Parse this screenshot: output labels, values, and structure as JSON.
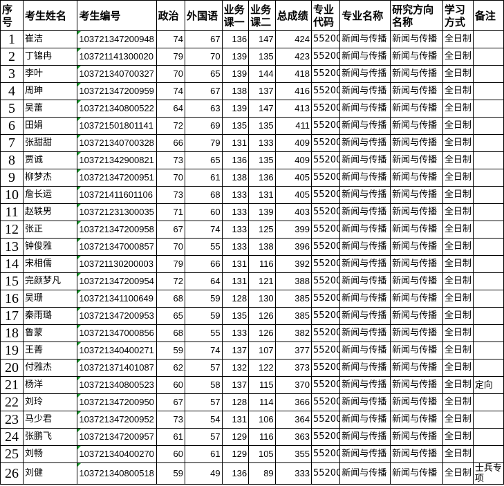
{
  "headers": [
    "序号",
    "考生姓名",
    "考生编号",
    "政治",
    "外国语",
    "业务课一",
    "业务课二",
    "总成绩",
    "专业代码",
    "专业名称",
    "研究方向名称",
    "学习方式",
    "备注"
  ],
  "rows": [
    [
      "1",
      "崔洁",
      "103721347200948",
      "74",
      "67",
      "136",
      "147",
      "424",
      "55200",
      "新闻与传播",
      "新闻与传播",
      "全日制",
      ""
    ],
    [
      "2",
      "丁锦冉",
      "103721141300020",
      "79",
      "70",
      "139",
      "135",
      "423",
      "55200",
      "新闻与传播",
      "新闻与传播",
      "全日制",
      ""
    ],
    [
      "3",
      "李叶",
      "103721340700327",
      "70",
      "65",
      "139",
      "144",
      "418",
      "55200",
      "新闻与传播",
      "新闻与传播",
      "全日制",
      ""
    ],
    [
      "4",
      "周珅",
      "103721347200959",
      "74",
      "67",
      "138",
      "137",
      "416",
      "55200",
      "新闻与传播",
      "新闻与传播",
      "全日制",
      ""
    ],
    [
      "5",
      "吴蕾",
      "103721340800522",
      "64",
      "63",
      "139",
      "147",
      "413",
      "55200",
      "新闻与传播",
      "新闻与传播",
      "全日制",
      ""
    ],
    [
      "6",
      "田娟",
      "103721501801141",
      "72",
      "69",
      "135",
      "135",
      "411",
      "55200",
      "新闻与传播",
      "新闻与传播",
      "全日制",
      ""
    ],
    [
      "7",
      "张甜甜",
      "103721340700328",
      "66",
      "79",
      "131",
      "133",
      "409",
      "55200",
      "新闻与传播",
      "新闻与传播",
      "全日制",
      ""
    ],
    [
      "8",
      "贾诚",
      "103721342900821",
      "73",
      "65",
      "136",
      "135",
      "409",
      "55200",
      "新闻与传播",
      "新闻与传播",
      "全日制",
      ""
    ],
    [
      "9",
      "柳梦杰",
      "103721347200951",
      "70",
      "61",
      "138",
      "136",
      "405",
      "55200",
      "新闻与传播",
      "新闻与传播",
      "全日制",
      ""
    ],
    [
      "10",
      "詹长运",
      "103721411601106",
      "73",
      "68",
      "133",
      "131",
      "405",
      "55200",
      "新闻与传播",
      "新闻与传播",
      "全日制",
      ""
    ],
    [
      "11",
      "赵轶男",
      "103721231300035",
      "71",
      "60",
      "133",
      "139",
      "403",
      "55200",
      "新闻与传播",
      "新闻与传播",
      "全日制",
      ""
    ],
    [
      "12",
      "张正",
      "103721347200958",
      "67",
      "74",
      "133",
      "125",
      "399",
      "55200",
      "新闻与传播",
      "新闻与传播",
      "全日制",
      ""
    ],
    [
      "13",
      "钟俊雅",
      "103721347000857",
      "70",
      "55",
      "133",
      "138",
      "396",
      "55200",
      "新闻与传播",
      "新闻与传播",
      "全日制",
      ""
    ],
    [
      "14",
      "宋相儒",
      "103721130200003",
      "79",
      "66",
      "131",
      "116",
      "392",
      "55200",
      "新闻与传播",
      "新闻与传播",
      "全日制",
      ""
    ],
    [
      "15",
      "完颜梦凡",
      "103721347200954",
      "72",
      "64",
      "131",
      "121",
      "388",
      "55200",
      "新闻与传播",
      "新闻与传播",
      "全日制",
      ""
    ],
    [
      "16",
      "吴珊",
      "103721341100649",
      "68",
      "59",
      "128",
      "130",
      "385",
      "55200",
      "新闻与传播",
      "新闻与传播",
      "全日制",
      ""
    ],
    [
      "17",
      "秦雨璐",
      "103721347200953",
      "65",
      "59",
      "135",
      "126",
      "385",
      "55200",
      "新闻与传播",
      "新闻与传播",
      "全日制",
      ""
    ],
    [
      "18",
      "鲁蒙",
      "103721347000856",
      "68",
      "55",
      "133",
      "126",
      "382",
      "55200",
      "新闻与传播",
      "新闻与传播",
      "全日制",
      ""
    ],
    [
      "19",
      "王菁",
      "103721340400271",
      "59",
      "74",
      "137",
      "107",
      "377",
      "55200",
      "新闻与传播",
      "新闻与传播",
      "全日制",
      ""
    ],
    [
      "20",
      "付雅杰",
      "103721371401087",
      "62",
      "57",
      "132",
      "122",
      "373",
      "55200",
      "新闻与传播",
      "新闻与传播",
      "全日制",
      ""
    ],
    [
      "21",
      "杨洋",
      "103721340800523",
      "60",
      "58",
      "137",
      "115",
      "370",
      "55200",
      "新闻与传播",
      "新闻与传播",
      "全日制",
      "定向"
    ],
    [
      "22",
      "刘玲",
      "103721347200950",
      "67",
      "57",
      "128",
      "114",
      "366",
      "55200",
      "新闻与传播",
      "新闻与传播",
      "全日制",
      ""
    ],
    [
      "23",
      "马少君",
      "103721347200952",
      "73",
      "54",
      "131",
      "106",
      "364",
      "55200",
      "新闻与传播",
      "新闻与传播",
      "全日制",
      ""
    ],
    [
      "24",
      "张鹏飞",
      "103721347200957",
      "61",
      "57",
      "129",
      "116",
      "363",
      "55200",
      "新闻与传播",
      "新闻与传播",
      "全日制",
      ""
    ],
    [
      "25",
      "刘畅",
      "103721340400270",
      "60",
      "61",
      "129",
      "105",
      "355",
      "55200",
      "新闻与传播",
      "新闻与传播",
      "全日制",
      ""
    ],
    [
      "26",
      "刘健",
      "103721340800518",
      "59",
      "49",
      "136",
      "89",
      "333",
      "55200",
      "新闻与传播",
      "新闻与传播",
      "全日制",
      "士兵专项"
    ]
  ]
}
